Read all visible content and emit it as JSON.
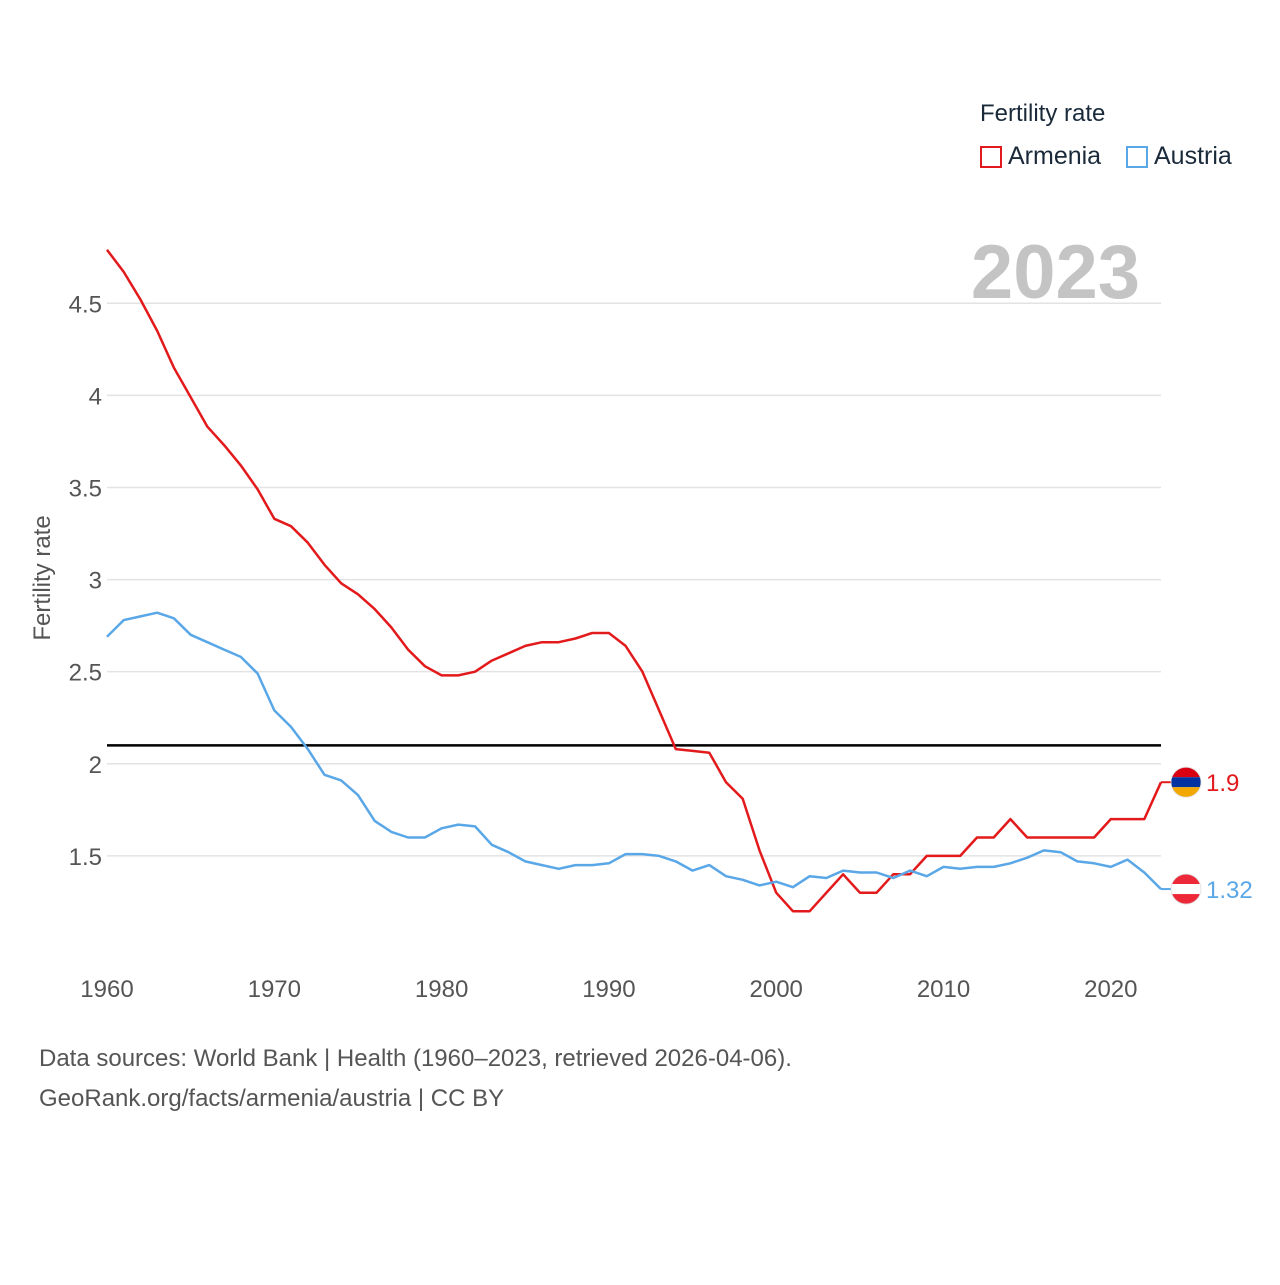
{
  "legend": {
    "title": "Fertility rate",
    "items": [
      {
        "label": "Armenia",
        "color": "#e31a1c"
      },
      {
        "label": "Austria",
        "color": "#5aa7e8"
      }
    ]
  },
  "footer": {
    "line1": "Data sources: World Bank | Health (1960–2023, retrieved 2026-04-06).",
    "line2": "GeoRank.org/facts/armenia/austria | CC BY"
  },
  "chart_data": {
    "type": "line",
    "year_label": "2023",
    "ylabel": "Fertility rate",
    "xlim": [
      1960,
      2023
    ],
    "ylim": [
      1.0,
      4.8
    ],
    "x_ticks": [
      1960,
      1970,
      1980,
      1990,
      2000,
      2010,
      2020
    ],
    "y_ticks": [
      {
        "value": 1.5,
        "label": "1.5"
      },
      {
        "value": 2,
        "label": "2"
      },
      {
        "value": 2.5,
        "label": "2.5"
      },
      {
        "value": 3,
        "label": "3"
      },
      {
        "value": 3.5,
        "label": "3.5"
      },
      {
        "value": 4,
        "label": "4"
      },
      {
        "value": 4.5,
        "label": "4.5"
      }
    ],
    "reference_line": 2.1,
    "x": [
      1960,
      1961,
      1962,
      1963,
      1964,
      1965,
      1966,
      1967,
      1968,
      1969,
      1970,
      1971,
      1972,
      1973,
      1974,
      1975,
      1976,
      1977,
      1978,
      1979,
      1980,
      1981,
      1982,
      1983,
      1984,
      1985,
      1986,
      1987,
      1988,
      1989,
      1990,
      1991,
      1992,
      1993,
      1994,
      1995,
      1996,
      1997,
      1998,
      1999,
      2000,
      2001,
      2002,
      2003,
      2004,
      2005,
      2006,
      2007,
      2008,
      2009,
      2010,
      2011,
      2012,
      2013,
      2014,
      2015,
      2016,
      2017,
      2018,
      2019,
      2020,
      2021,
      2022,
      2023
    ],
    "series": [
      {
        "name": "Armenia",
        "color": "#e31a1c",
        "end_label": "1.9",
        "values": [
          4.79,
          4.67,
          4.52,
          4.35,
          4.15,
          3.99,
          3.83,
          3.73,
          3.62,
          3.49,
          3.33,
          3.29,
          3.2,
          3.08,
          2.98,
          2.92,
          2.84,
          2.74,
          2.62,
          2.53,
          2.48,
          2.48,
          2.5,
          2.56,
          2.6,
          2.64,
          2.66,
          2.66,
          2.68,
          2.71,
          2.71,
          2.64,
          2.5,
          2.29,
          2.08,
          2.07,
          2.06,
          1.9,
          1.81,
          1.53,
          1.3,
          1.2,
          1.2,
          1.3,
          1.4,
          1.3,
          1.3,
          1.4,
          1.4,
          1.5,
          1.5,
          1.5,
          1.6,
          1.6,
          1.7,
          1.6,
          1.6,
          1.6,
          1.6,
          1.6,
          1.7,
          1.7,
          1.7,
          1.9
        ]
      },
      {
        "name": "Austria",
        "color": "#5aa7e8",
        "end_label": "1.32",
        "values": [
          2.69,
          2.78,
          2.8,
          2.82,
          2.79,
          2.7,
          2.66,
          2.62,
          2.58,
          2.49,
          2.29,
          2.2,
          2.08,
          1.94,
          1.91,
          1.83,
          1.69,
          1.63,
          1.6,
          1.6,
          1.65,
          1.67,
          1.66,
          1.56,
          1.52,
          1.47,
          1.45,
          1.43,
          1.45,
          1.45,
          1.46,
          1.51,
          1.51,
          1.5,
          1.47,
          1.42,
          1.45,
          1.39,
          1.37,
          1.34,
          1.36,
          1.33,
          1.39,
          1.38,
          1.42,
          1.41,
          1.41,
          1.38,
          1.42,
          1.39,
          1.44,
          1.43,
          1.44,
          1.44,
          1.46,
          1.49,
          1.53,
          1.52,
          1.47,
          1.46,
          1.44,
          1.48,
          1.41,
          1.32
        ]
      }
    ]
  }
}
